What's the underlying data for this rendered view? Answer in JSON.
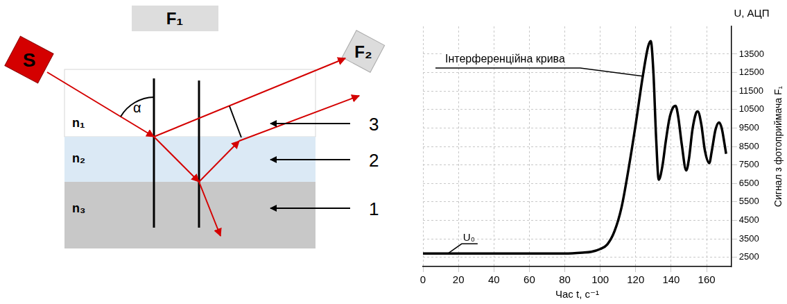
{
  "chart_data": {
    "type": "line",
    "x_label": "Час t, с⁻¹",
    "y_label": "Сигнал з фотоприймача F₁",
    "y_unit_label": "U, АЦП",
    "x": [
      0,
      20,
      40,
      60,
      80,
      90,
      95,
      100,
      104,
      108,
      112,
      116,
      120,
      124,
      127,
      128.5,
      130,
      131.5,
      133,
      135,
      137,
      139,
      141,
      142.5,
      144,
      146,
      148.5,
      150,
      152,
      154,
      155,
      157,
      159,
      161.5,
      163,
      165,
      167,
      168.5,
      170,
      171
    ],
    "values": [
      2700,
      2700,
      2700,
      2700,
      2700,
      2750,
      2800,
      2950,
      3200,
      3900,
      5200,
      7300,
      9700,
      12300,
      13900,
      14200,
      12500,
      9000,
      6700,
      7400,
      8800,
      10000,
      10600,
      10700,
      10100,
      8600,
      7200,
      7800,
      9400,
      10300,
      10400,
      9700,
      8300,
      7600,
      8300,
      9400,
      9800,
      9500,
      8700,
      8100
    ],
    "color": "#000000",
    "xlim": [
      0,
      174
    ],
    "xticks": [
      0,
      20,
      40,
      60,
      80,
      100,
      120,
      140,
      160
    ],
    "ylim": [
      2000,
      15000
    ],
    "yticks": [
      2500,
      3500,
      4500,
      5500,
      6500,
      7500,
      8500,
      9500,
      10500,
      11500,
      12500,
      13500
    ],
    "grid": true,
    "annotations": [
      {
        "text": "Інтерференційна крива",
        "x": 124,
        "y": 12300
      },
      {
        "text": "U₀",
        "x": 14,
        "y": 2700
      }
    ]
  },
  "diagram": {
    "source": "S",
    "detector_top": "F₁",
    "detector_right": "F₂",
    "layers": [
      "n₁",
      "n₂",
      "n₃"
    ],
    "angle": "α",
    "pointers": [
      "3",
      "2",
      "1"
    ]
  }
}
